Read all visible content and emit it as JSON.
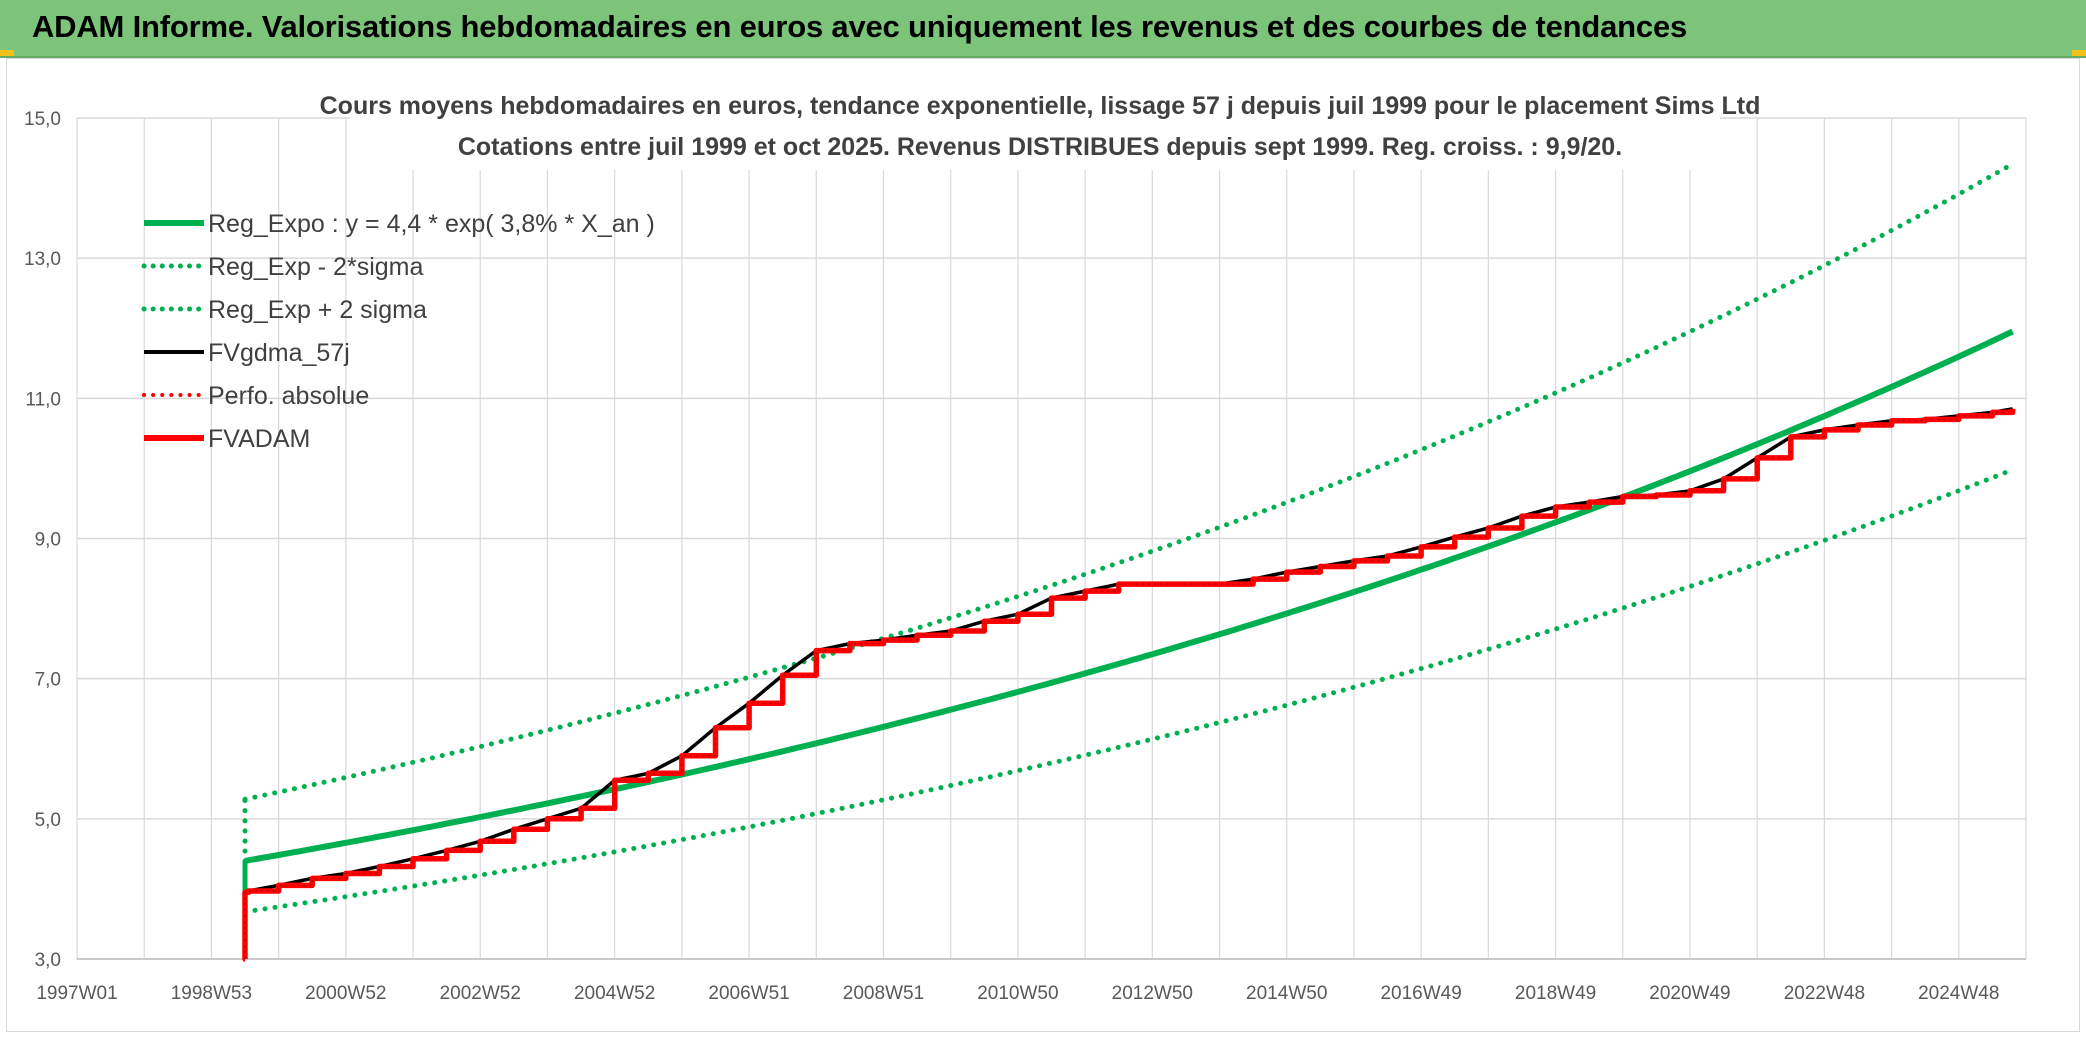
{
  "header": {
    "title": "ADAM Informe. Valorisations hebdomadaires en euros avec uniquement les revenus et des courbes de tendances"
  },
  "colors": {
    "banner": "#7cc47a",
    "green": "#00b050",
    "red": "#ff0000",
    "black": "#000000",
    "grid": "#d9d9d9"
  },
  "chart_data": {
    "type": "line",
    "title_lines": [
      "Cours moyens hebdomadaires en euros, tendance exponentielle, lissage 57 j depuis juil 1999 pour le placement Sims Ltd",
      "Cotations entre juil 1999 et oct 2025. Revenus DISTRIBUES depuis sept 1999. Reg. croiss. : 9,9/20."
    ],
    "ylim": [
      3,
      15
    ],
    "y_ticks": [
      "3,0",
      "5,0",
      "7,0",
      "9,0",
      "11,0",
      "13,0",
      "15,0"
    ],
    "y_tick_values": [
      3,
      5,
      7,
      9,
      11,
      13,
      15
    ],
    "xlim": [
      1997.0,
      2026.0
    ],
    "x_ticks": [
      "1997W01",
      "1998W53",
      "2000W52",
      "2002W52",
      "2004W52",
      "2006W51",
      "2008W51",
      "2010W50",
      "2012W50",
      "2014W50",
      "2016W49",
      "2018W49",
      "2020W49",
      "2022W48",
      "2024W48"
    ],
    "x_tick_values": [
      1997,
      1999,
      2001,
      2003,
      2005,
      2007,
      2009,
      2011,
      2013,
      2015,
      2017,
      2019,
      2021,
      2023,
      2025
    ],
    "grid": true,
    "legend_position": "top-left",
    "legend": [
      {
        "name": "Reg_Expo : y = 4,4 * exp( 3,8% *  X_an )",
        "color": "#00b050",
        "style": "solid",
        "width": 6
      },
      {
        "name": "Reg_Exp - 2*sigma",
        "color": "#00b050",
        "style": "dotted",
        "width": 5
      },
      {
        "name": "Reg_Exp + 2 sigma",
        "color": "#00b050",
        "style": "dotted",
        "width": 5
      },
      {
        "name": "FVgdma_57j",
        "color": "#000000",
        "style": "solid",
        "width": 4
      },
      {
        "name": "Perfo. absolue",
        "color": "#ff0000",
        "style": "dotted",
        "width": 4
      },
      {
        "name": "FVADAM",
        "color": "#ff0000",
        "style": "solid",
        "width": 6
      }
    ],
    "regression": {
      "a": 4.4,
      "rate": 0.038,
      "start": 1999.5,
      "end": 2025.8,
      "k_lower": 0.835,
      "k_upper": 1.2
    },
    "series": [
      {
        "name": "FVADAM",
        "x": [
          1999.5,
          1999.5,
          1999.55,
          2000.0,
          2000.5,
          2001.0,
          2001.5,
          2002.0,
          2002.5,
          2003.0,
          2003.5,
          2004.0,
          2004.5,
          2005.0,
          2005.5,
          2006.0,
          2006.5,
          2007.0,
          2007.5,
          2008.0,
          2008.5,
          2009.0,
          2009.5,
          2010.0,
          2010.5,
          2011.0,
          2011.5,
          2012.0,
          2012.5,
          2013.0,
          2013.5,
          2014.0,
          2014.5,
          2015.0,
          2015.5,
          2016.0,
          2016.5,
          2017.0,
          2017.5,
          2018.0,
          2018.5,
          2019.0,
          2019.5,
          2020.0,
          2020.5,
          2021.0,
          2021.5,
          2022.0,
          2022.5,
          2023.0,
          2023.5,
          2024.0,
          2024.5,
          2025.0,
          2025.5,
          2025.8
        ],
        "values": [
          3.0,
          3.95,
          3.97,
          4.05,
          4.15,
          4.22,
          4.32,
          4.43,
          4.55,
          4.68,
          4.85,
          5.0,
          5.15,
          5.55,
          5.65,
          5.9,
          6.3,
          6.65,
          7.05,
          7.4,
          7.5,
          7.55,
          7.62,
          7.68,
          7.82,
          7.92,
          8.15,
          8.25,
          8.35,
          8.35,
          8.35,
          8.35,
          8.42,
          8.52,
          8.6,
          8.68,
          8.75,
          8.88,
          9.02,
          9.15,
          9.32,
          9.45,
          9.52,
          9.6,
          9.62,
          9.68,
          9.85,
          10.15,
          10.45,
          10.55,
          10.62,
          10.68,
          10.7,
          10.75,
          10.8,
          10.85
        ]
      }
    ]
  }
}
